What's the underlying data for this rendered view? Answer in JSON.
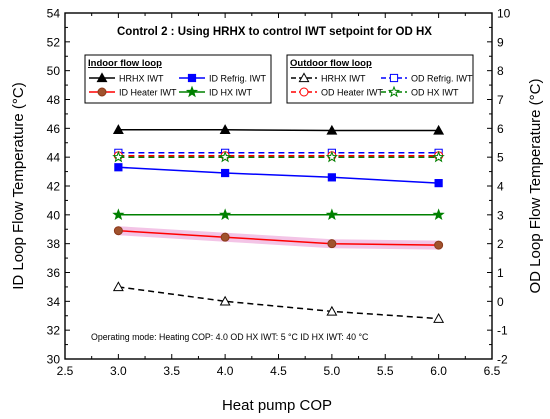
{
  "chart_data": {
    "type": "line",
    "title": "Control 2 : Using HRHX to control IWT setpoint for OD HX",
    "xlabel": "Heat pump COP",
    "ylabel_left": "ID Loop Flow Temperature (°C)",
    "ylabel_right": "OD Loop Flow Temperature (°C)",
    "xlim": [
      2.5,
      6.5
    ],
    "ylim_left": [
      30,
      54
    ],
    "ylim_right": [
      -2,
      10
    ],
    "x_ticks": [
      "2.5",
      "3.0",
      "3.5",
      "4.0",
      "4.5",
      "5.0",
      "5.5",
      "6.0",
      "6.5"
    ],
    "y_left_ticks": [
      "30",
      "32",
      "34",
      "36",
      "38",
      "40",
      "42",
      "44",
      "46",
      "48",
      "50",
      "52",
      "54"
    ],
    "y_right_ticks": [
      "-2",
      "-1",
      "0",
      "1",
      "2",
      "3",
      "4",
      "5",
      "6",
      "7",
      "8",
      "9",
      "10"
    ],
    "x": [
      3.0,
      4.0,
      5.0,
      6.0
    ],
    "legend_groups": [
      {
        "title": "Indoor flow loop",
        "entries": [
          "HRHX IWT",
          "ID Refrig. IWT",
          "ID Heater IWT",
          "ID HX IWT"
        ]
      },
      {
        "title": "Outdoor flow loop",
        "entries": [
          "HRHX IWT",
          "OD Refrig. IWT",
          "OD Heater IWT",
          "OD HX IWT"
        ]
      }
    ],
    "series": [
      {
        "name": "HRHX IWT",
        "group": "indoor",
        "axis": "left",
        "color": "#000000",
        "marker": "triangle-filled",
        "line": "solid",
        "values": [
          45.9,
          45.9,
          45.85,
          45.85
        ]
      },
      {
        "name": "ID Refrig. IWT",
        "group": "indoor",
        "axis": "left",
        "color": "#0000ff",
        "marker": "square-filled",
        "line": "solid",
        "values": [
          43.3,
          42.9,
          42.6,
          42.2
        ]
      },
      {
        "name": "ID Heater IWT",
        "group": "indoor",
        "axis": "left",
        "color": "#ff0000",
        "marker": "circle-filled",
        "line": "solid",
        "values": [
          38.9,
          38.45,
          38.0,
          37.9
        ]
      },
      {
        "name": "ID HX IWT",
        "group": "indoor",
        "axis": "left",
        "color": "#008000",
        "marker": "star-filled",
        "line": "solid",
        "values": [
          40.0,
          40.0,
          40.0,
          40.0
        ]
      },
      {
        "name": "HRHX IWT",
        "group": "outdoor",
        "axis": "right",
        "color": "#000000",
        "marker": "triangle-open",
        "line": "dashed",
        "values": [
          0.5,
          0.0,
          -0.35,
          -0.6
        ]
      },
      {
        "name": "OD Refrig. IWT",
        "group": "outdoor",
        "axis": "right",
        "color": "#0000ff",
        "marker": "square-open",
        "line": "dashed",
        "values": [
          5.15,
          5.15,
          5.15,
          5.15
        ]
      },
      {
        "name": "OD Heater IWT",
        "group": "outdoor",
        "axis": "right",
        "color": "#ff0000",
        "marker": "circle-open",
        "line": "dashed",
        "values": [
          5.05,
          5.05,
          5.05,
          5.05
        ]
      },
      {
        "name": "OD HX IWT",
        "group": "outdoor",
        "axis": "right",
        "color": "#008000",
        "marker": "star-open",
        "line": "dashed",
        "values": [
          5.0,
          5.0,
          5.0,
          5.0
        ]
      }
    ],
    "annotation": "Operating mode: Heating   COP: 4.0   OD HX IWT: 5 °C   ID HX IWT: 40 °C"
  }
}
